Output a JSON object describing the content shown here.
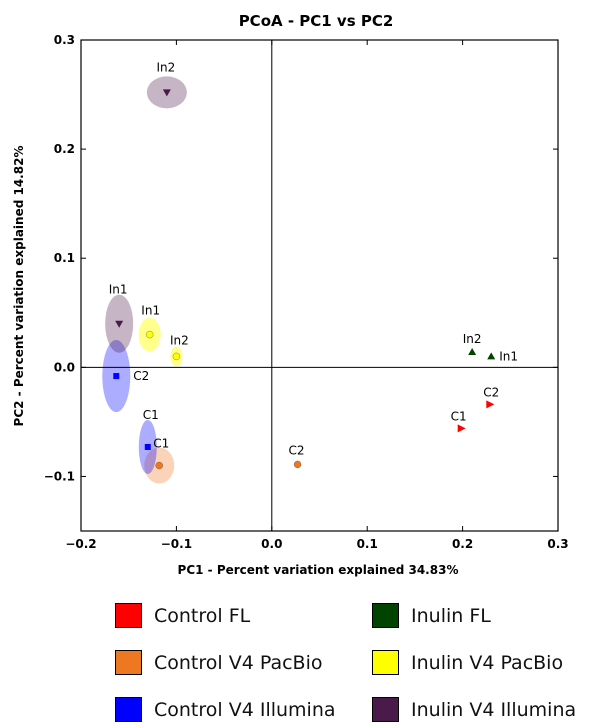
{
  "chart_data": {
    "type": "scatter",
    "title": "PCoA - PC1 vs PC2",
    "xlabel": "PC1 - Percent variation explained 34.83%",
    "ylabel": "PC2 - Percent variation explained 14.82%",
    "xlim": [
      -0.2,
      0.3
    ],
    "ylim": [
      -0.15,
      0.3
    ],
    "xticks": [
      "−0.2",
      "−0.1",
      "0.0",
      "0.1",
      "0.2",
      "0.3"
    ],
    "yticks": [
      "−0.1",
      "0.0",
      "0.1",
      "0.2",
      "0.3"
    ],
    "xtick_values": [
      -0.2,
      -0.1,
      0.0,
      0.1,
      0.2,
      0.3
    ],
    "ytick_values": [
      -0.1,
      0.0,
      0.1,
      0.2,
      0.3
    ],
    "zero_lines": true,
    "grid": false,
    "legend_placement": "below",
    "series": [
      {
        "name": "Control FL",
        "color": "#ff0000",
        "marker": "triangle-right",
        "points": [
          {
            "label": "C1",
            "x": 0.198,
            "y": -0.056
          },
          {
            "label": "C2",
            "x": 0.228,
            "y": -0.034
          }
        ]
      },
      {
        "name": "Inulin FL",
        "color": "#004400",
        "marker": "triangle-up",
        "points": [
          {
            "label": "In2",
            "x": 0.21,
            "y": 0.014
          },
          {
            "label": "In1",
            "x": 0.23,
            "y": 0.01
          }
        ]
      },
      {
        "name": "Control V4 PacBio",
        "color": "#ee7722",
        "marker": "circle",
        "points": [
          {
            "label": "C1",
            "x": -0.118,
            "y": -0.09
          },
          {
            "label": "C2",
            "x": 0.027,
            "y": -0.089
          }
        ]
      },
      {
        "name": "Inulin V4 PacBio",
        "color": "#ffff00",
        "marker": "circle",
        "points": [
          {
            "label": "In1",
            "x": -0.128,
            "y": 0.03
          },
          {
            "label": "In2",
            "x": -0.1,
            "y": 0.01
          }
        ]
      },
      {
        "name": "Control V4 Illumina",
        "color": "#0000ff",
        "marker": "square",
        "points": [
          {
            "label": "C1",
            "x": -0.13,
            "y": -0.073
          },
          {
            "label": "C2",
            "x": -0.163,
            "y": -0.008
          }
        ]
      },
      {
        "name": "Inulin V4 Illumina",
        "color": "#4a1a4a",
        "marker": "triangle-down",
        "points": [
          {
            "label": "In1",
            "x": -0.16,
            "y": 0.04
          },
          {
            "label": "In2",
            "x": -0.11,
            "y": 0.252
          }
        ]
      }
    ]
  }
}
